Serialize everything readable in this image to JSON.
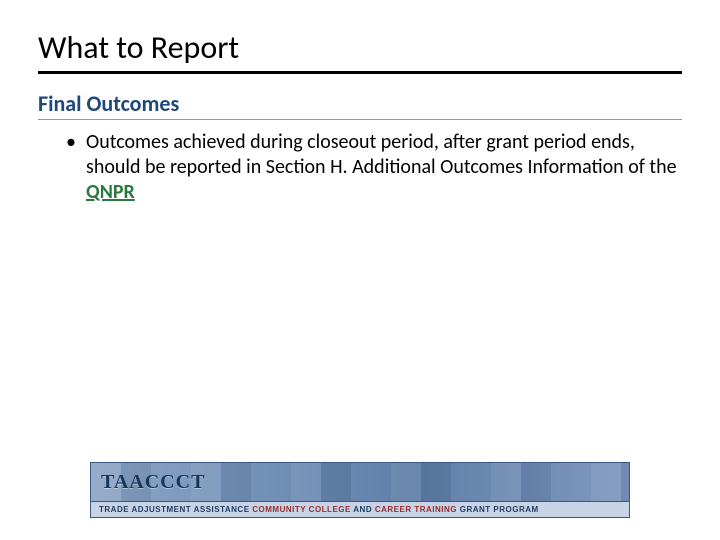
{
  "title": "What to Report",
  "subtitle": "Final Outcomes",
  "bullet_prefix": "Outcomes achieved during closeout period, after grant period ends, should be reported in Section H. Additional Outcomes Information of the ",
  "bullet_link": "QNPR",
  "banner": {
    "logo": "TAACCCT",
    "line_a": "TRADE ADJUSTMENT ASSISTANCE ",
    "line_b": "COMMUNITY COLLEGE ",
    "line_c": "AND ",
    "line_d": "CAREER TRAINING ",
    "line_e": "GRANT PROGRAM"
  },
  "colors": {
    "subtitle": "#1f497d",
    "link": "#2a7a3f",
    "banner_dark": "#1f3a5f",
    "banner_accent": "#9c2b2b"
  }
}
